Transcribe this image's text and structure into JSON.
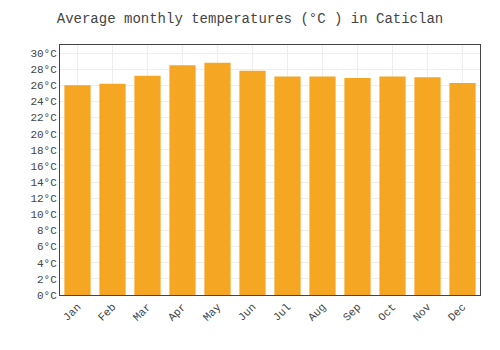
{
  "chart_data": {
    "type": "bar",
    "title": "Average monthly temperatures (°C ) in Caticlan",
    "categories": [
      "Jan",
      "Feb",
      "Mar",
      "Apr",
      "May",
      "Jun",
      "Jul",
      "Aug",
      "Sep",
      "Oct",
      "Nov",
      "Dec"
    ],
    "values": [
      26,
      26.2,
      27.2,
      28.5,
      28.8,
      27.8,
      27.1,
      27.1,
      26.9,
      27.1,
      27.0,
      26.3
    ],
    "color": "#F5A623",
    "ylim": [
      0,
      31
    ],
    "yticks": [
      {
        "value": 0,
        "label": "0°C"
      },
      {
        "value": 2,
        "label": "2°C"
      },
      {
        "value": 4,
        "label": "4°C"
      },
      {
        "value": 6,
        "label": "6°C"
      },
      {
        "value": 8,
        "label": "8°C"
      },
      {
        "value": 10,
        "label": "10°C"
      },
      {
        "value": 12,
        "label": "12°C"
      },
      {
        "value": 14,
        "label": "14°C"
      },
      {
        "value": 16,
        "label": "16°C"
      },
      {
        "value": 18,
        "label": "18°C"
      },
      {
        "value": 20,
        "label": "20°C"
      },
      {
        "value": 22,
        "label": "22°C"
      },
      {
        "value": 24,
        "label": "24°C"
      },
      {
        "value": 26,
        "label": "26°C"
      },
      {
        "value": 28,
        "label": "28°C"
      },
      {
        "value": 30,
        "label": "30°C"
      }
    ],
    "grid": true
  }
}
